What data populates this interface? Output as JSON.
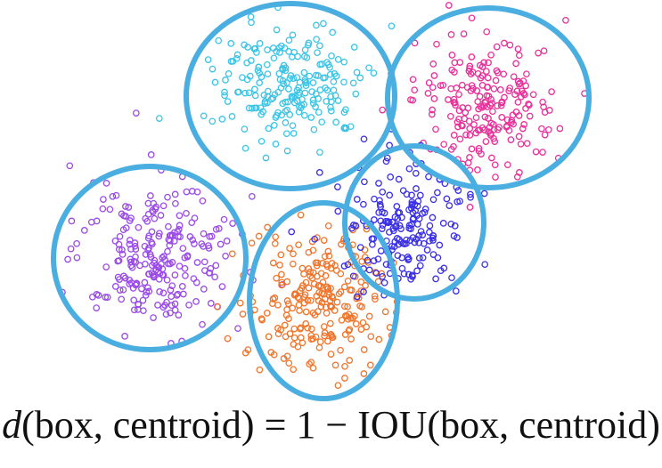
{
  "colors": {
    "background": "#ffffff",
    "circle_stroke": "#4aaee0",
    "text": "#111111"
  },
  "clusters": [
    {
      "name": "cyan-cluster",
      "color": "#3cc4e6",
      "point_count": 210
    },
    {
      "name": "magenta-cluster",
      "color": "#e8309a",
      "point_count": 210
    },
    {
      "name": "purple-cluster",
      "color": "#9a4ae8",
      "point_count": 240
    },
    {
      "name": "orange-cluster",
      "color": "#f0742a",
      "point_count": 240
    },
    {
      "name": "blue-cluster",
      "color": "#3a2ee8",
      "point_count": 190
    }
  ],
  "formula": {
    "lhs_func": "d",
    "lhs_args": "(box, centroid)",
    "operator": " = 1 − IOU(box, centroid)"
  }
}
